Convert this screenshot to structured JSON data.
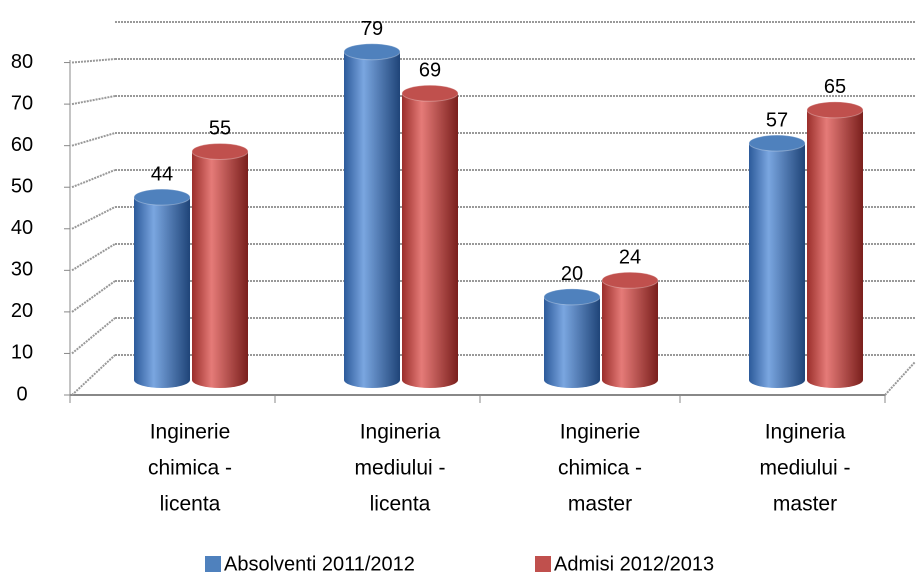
{
  "chart_data": {
    "type": "bar3d",
    "categories": [
      [
        "Inginerie",
        "chimica -",
        "licenta"
      ],
      [
        "Ingineria",
        "mediului -",
        "licenta"
      ],
      [
        "Inginerie",
        "chimica -",
        "master"
      ],
      [
        "Ingineria",
        "mediului -",
        "master"
      ]
    ],
    "series": [
      {
        "name": "Absolventi 2011/2012",
        "color": "#4f81bd",
        "values": [
          44,
          79,
          20,
          57
        ]
      },
      {
        "name": "Admisi 2012/2013",
        "color": "#c0504d",
        "values": [
          55,
          69,
          24,
          65
        ]
      }
    ],
    "ylim": [
      0,
      90
    ],
    "yticks": [
      0,
      10,
      20,
      30,
      40,
      50,
      60,
      70,
      80
    ],
    "grid": true,
    "legend": "bottom"
  }
}
